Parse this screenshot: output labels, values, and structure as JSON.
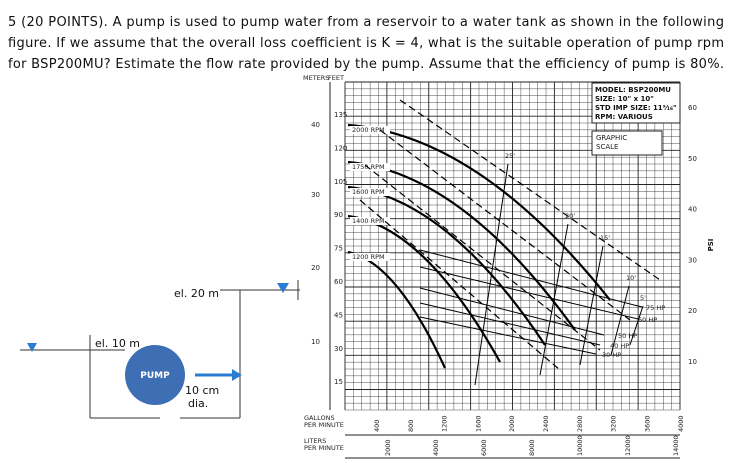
{
  "question": {
    "lines": [
      "5 (20 POINTS). A pump is used to pump water from a reservoir to a water tank as shown in the following",
      "figure.  If we assume that the overall loss coefficient is K = 4, what is the suitable operation of pump rpm",
      "for BSP200MU?  Estimate the flow rate provided by the pump.  Assume that the efficiency of pump is 80%."
    ]
  },
  "figure": {
    "reservoir_label": "el. 10 m",
    "tank_label": "el. 20 m",
    "pump_label": "PUMP",
    "pipe_label": [
      "10 cm",
      "dia."
    ]
  },
  "chart": {
    "header_meters": "METERS",
    "header_feet": "FEET",
    "meters_ticks": [
      "40",
      "30",
      "20",
      "10"
    ],
    "feet_ticks": [
      "135",
      "120",
      "105",
      "90",
      "75",
      "60",
      "45",
      "30",
      "15"
    ],
    "psi_ticks": [
      "60",
      "50",
      "40",
      "30",
      "20",
      "10"
    ],
    "psi_label": "PSI",
    "gpm_label": [
      "GALLONS",
      "PER MINUTE"
    ],
    "gpm_ticks": [
      "400",
      "800",
      "1200",
      "1600",
      "2000",
      "2400",
      "2800",
      "3200",
      "3600",
      "4000"
    ],
    "lpm_label": [
      "LITERS",
      "PER MINUTE"
    ],
    "lpm_ticks": [
      "2000",
      "4000",
      "6000",
      "8000",
      "10000",
      "12000",
      "14000"
    ],
    "info": [
      "MODEL: BSP200MU",
      "SIZE: 10\" x 10\"",
      "STD IMP SIZE: 11⁹⁄₁₆\"",
      "RPM: VARIOUS"
    ],
    "graphic_scale": [
      "GRAPHIC",
      "SCALE"
    ],
    "rpm_labels": [
      "2000 RPM",
      "1750 RPM",
      "1600 RPM",
      "1400 RPM",
      "1200 RPM"
    ],
    "hp_labels": [
      "75 HP",
      "60 HP",
      "50 HP",
      "40 HP",
      "30 HP"
    ],
    "npsh_labels": [
      "25'",
      "20'",
      "15'",
      "10'",
      "5'"
    ]
  }
}
